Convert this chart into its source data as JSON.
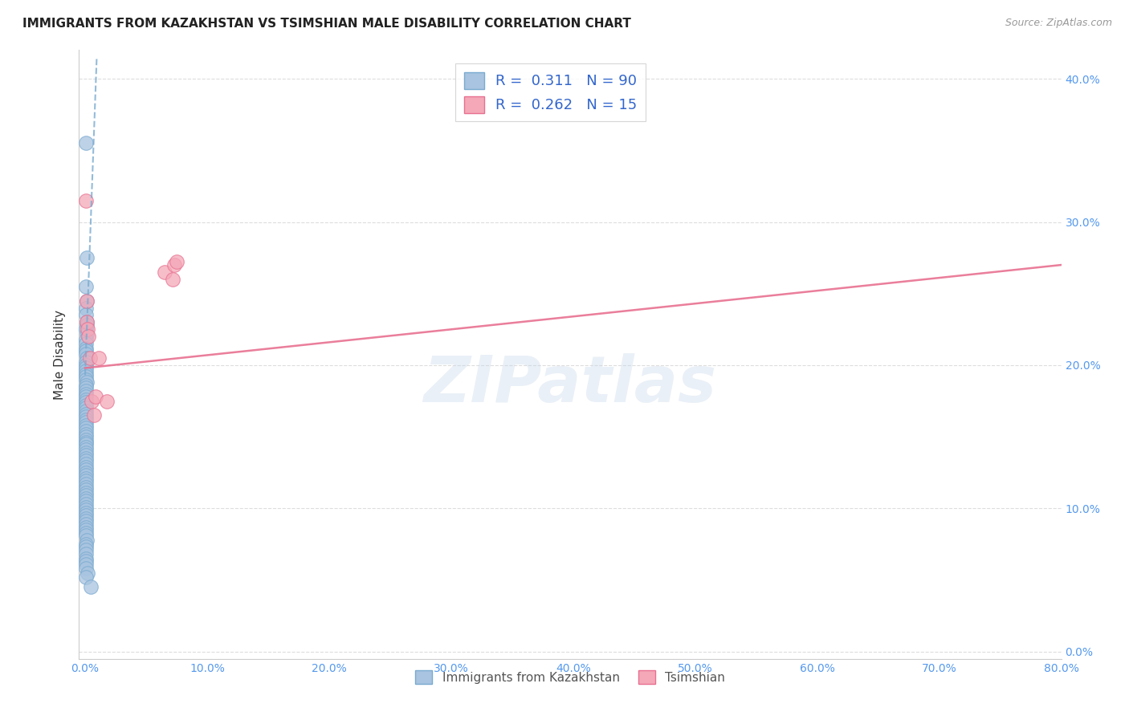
{
  "title": "IMMIGRANTS FROM KAZAKHSTAN VS TSIMSHIAN MALE DISABILITY CORRELATION CHART",
  "source": "Source: ZipAtlas.com",
  "ylabel": "Male Disability",
  "xlim": [
    -0.005,
    0.8
  ],
  "ylim": [
    -0.005,
    0.42
  ],
  "xticks": [
    0.0,
    0.1,
    0.2,
    0.3,
    0.4,
    0.5,
    0.6,
    0.7,
    0.8
  ],
  "yticks": [
    0.0,
    0.1,
    0.2,
    0.3,
    0.4
  ],
  "yticklabels_right": [
    "0.0%",
    "10.0%",
    "20.0%",
    "30.0%",
    "40.0%"
  ],
  "R_blue": 0.311,
  "N_blue": 90,
  "R_pink": 0.262,
  "N_pink": 15,
  "blue_color": "#a8c4e0",
  "pink_color": "#f4a8b8",
  "blue_edge_color": "#7aaad0",
  "pink_edge_color": "#e87090",
  "blue_line_color": "#7aaad0",
  "pink_line_color": "#e87090",
  "watermark": "ZIPatlas",
  "blue_dots_x": [
    0.0005,
    0.001,
    0.0008,
    0.0012,
    0.0006,
    0.0009,
    0.0011,
    0.0014,
    0.0007,
    0.001,
    0.0005,
    0.0008,
    0.0006,
    0.0007,
    0.0009,
    0.0011,
    0.0006,
    0.0008,
    0.0005,
    0.0007,
    0.0006,
    0.0008,
    0.0005,
    0.001,
    0.0007,
    0.0006,
    0.0008,
    0.0005,
    0.0007,
    0.0006,
    0.0005,
    0.0007,
    0.0005,
    0.0006,
    0.0008,
    0.0005,
    0.0007,
    0.0005,
    0.0008,
    0.0005,
    0.0005,
    0.0005,
    0.0007,
    0.0005,
    0.0005,
    0.0007,
    0.0005,
    0.0005,
    0.0005,
    0.0007,
    0.0005,
    0.0005,
    0.0005,
    0.0005,
    0.0005,
    0.0005,
    0.0005,
    0.0005,
    0.0005,
    0.0005,
    0.0005,
    0.0005,
    0.0005,
    0.0005,
    0.0005,
    0.0005,
    0.0005,
    0.0005,
    0.0005,
    0.0005,
    0.0005,
    0.0005,
    0.0008,
    0.0005,
    0.0005,
    0.0005,
    0.0005,
    0.0005,
    0.0015,
    0.0005,
    0.0005,
    0.0008,
    0.0005,
    0.0005,
    0.0005,
    0.0005,
    0.0005,
    0.0022,
    0.0005,
    0.0048
  ],
  "blue_dots_y": [
    0.355,
    0.275,
    0.255,
    0.245,
    0.24,
    0.235,
    0.23,
    0.228,
    0.225,
    0.222,
    0.218,
    0.215,
    0.212,
    0.21,
    0.208,
    0.205,
    0.202,
    0.2,
    0.198,
    0.196,
    0.194,
    0.192,
    0.19,
    0.188,
    0.186,
    0.184,
    0.182,
    0.18,
    0.178,
    0.176,
    0.174,
    0.172,
    0.17,
    0.168,
    0.166,
    0.164,
    0.162,
    0.16,
    0.158,
    0.156,
    0.154,
    0.152,
    0.15,
    0.148,
    0.146,
    0.145,
    0.143,
    0.141,
    0.139,
    0.137,
    0.135,
    0.133,
    0.131,
    0.129,
    0.127,
    0.125,
    0.123,
    0.121,
    0.119,
    0.117,
    0.115,
    0.113,
    0.111,
    0.109,
    0.107,
    0.105,
    0.103,
    0.101,
    0.099,
    0.097,
    0.095,
    0.093,
    0.091,
    0.089,
    0.087,
    0.085,
    0.083,
    0.081,
    0.078,
    0.075,
    0.073,
    0.071,
    0.068,
    0.065,
    0.063,
    0.061,
    0.058,
    0.055,
    0.052,
    0.045
  ],
  "pink_dots_x": [
    0.0008,
    0.0012,
    0.0016,
    0.002,
    0.0025,
    0.004,
    0.0055,
    0.007,
    0.0085,
    0.011,
    0.018,
    0.065,
    0.072,
    0.073,
    0.075
  ],
  "pink_dots_y": [
    0.315,
    0.245,
    0.23,
    0.225,
    0.22,
    0.205,
    0.175,
    0.165,
    0.178,
    0.205,
    0.175,
    0.265,
    0.26,
    0.27,
    0.272
  ],
  "blue_line_x": [
    0.0,
    0.0095
  ],
  "blue_line_y": [
    0.193,
    0.415
  ],
  "pink_line_x": [
    0.0,
    0.8
  ],
  "pink_line_y": [
    0.198,
    0.27
  ]
}
